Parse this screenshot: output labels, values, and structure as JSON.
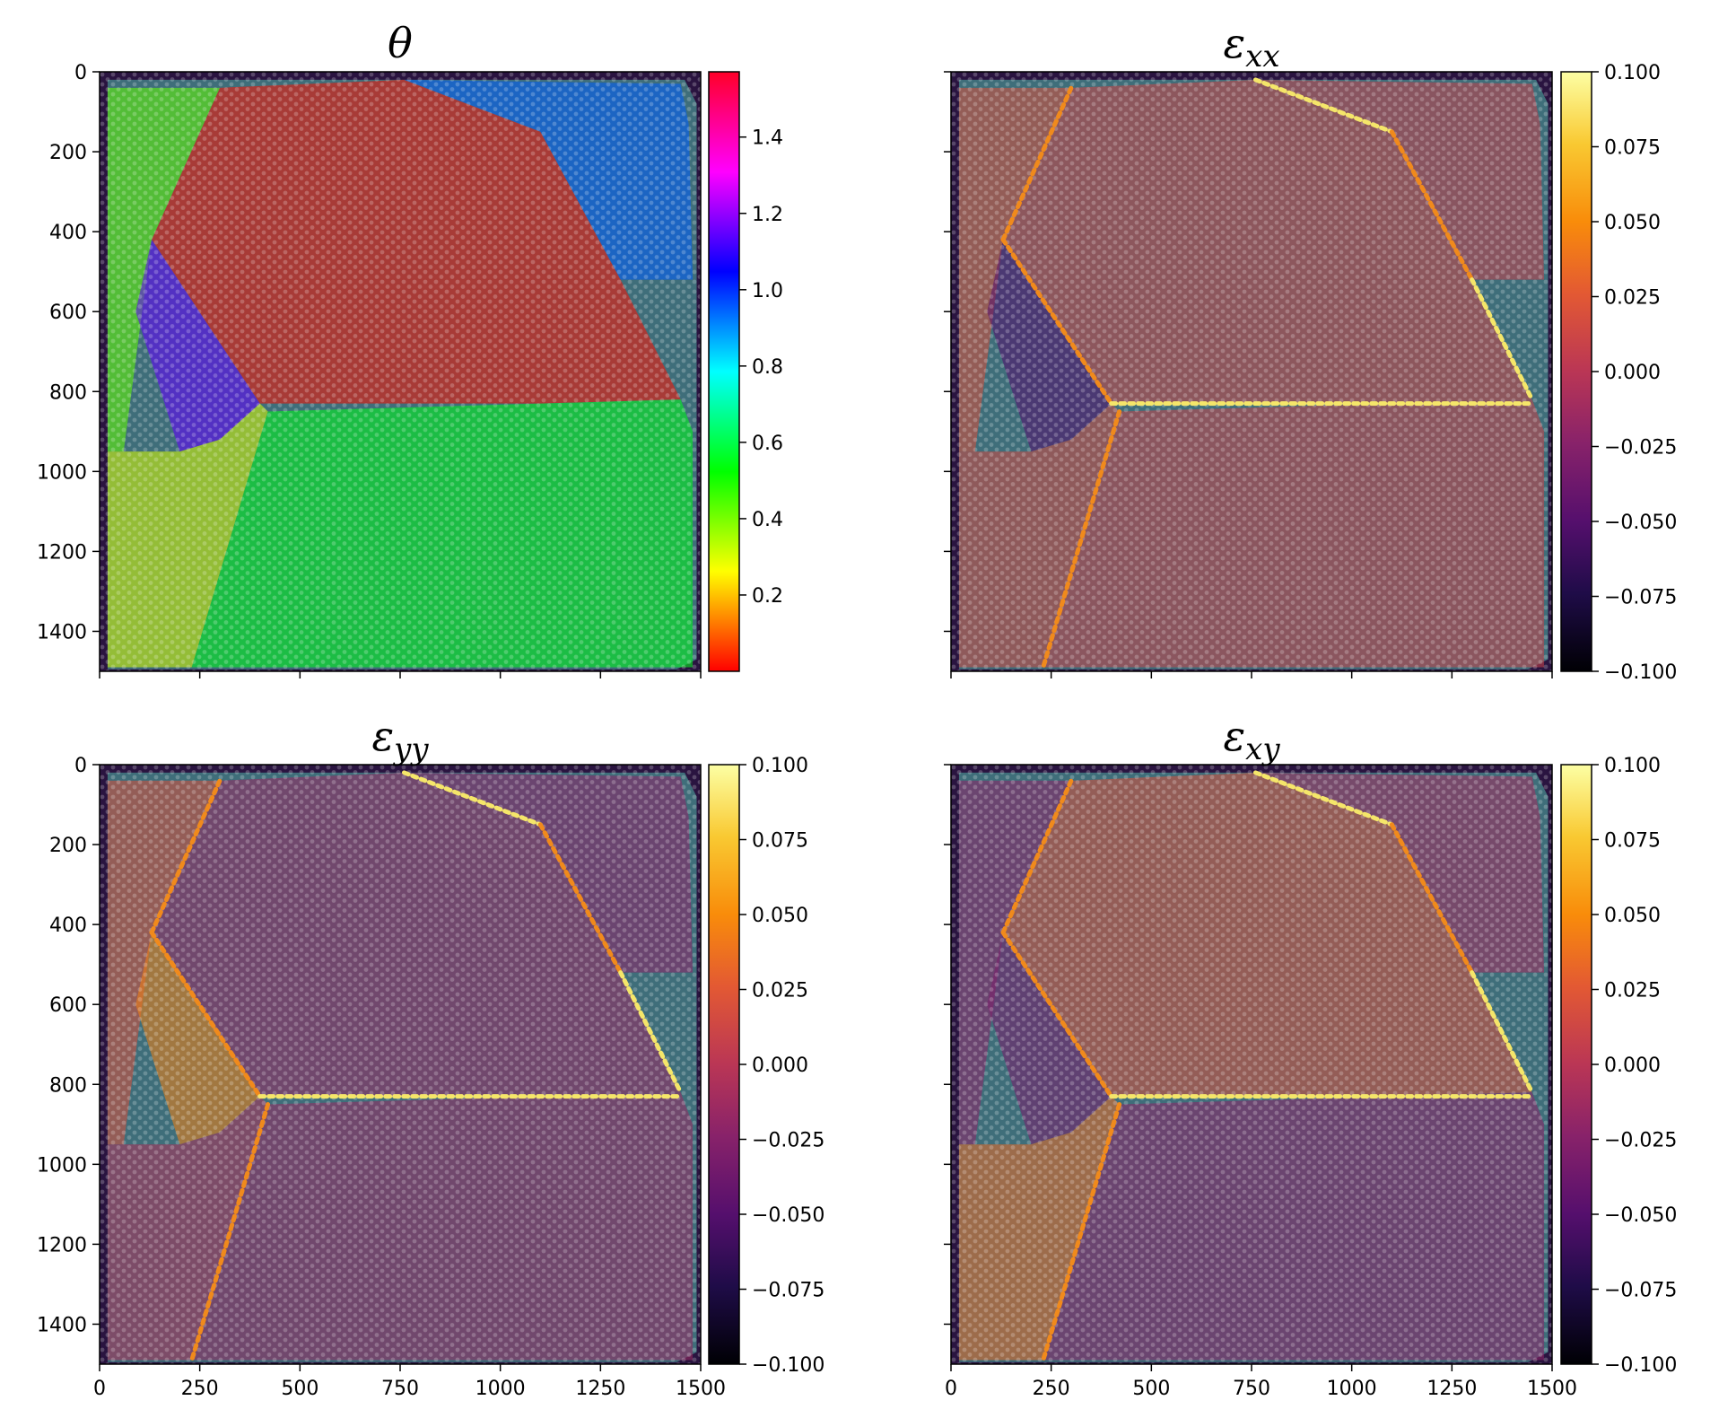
{
  "chart_data": [
    {
      "type": "heatmap",
      "title": "θ",
      "title_parts": {
        "base": "θ",
        "sub": ""
      },
      "colormap": "hsv",
      "colorbar": {
        "ticks": [
          0.2,
          0.4,
          0.6,
          0.8,
          1.0,
          1.2,
          1.4
        ],
        "tick_labels": [
          "0.2",
          "0.4",
          "0.6",
          "0.8",
          "1.0",
          "1.2",
          "1.4"
        ],
        "range": [
          0.0,
          1.571
        ]
      },
      "x_ticks": [
        0,
        250,
        500,
        750,
        1000,
        1250,
        1500
      ],
      "x_tick_labels": [],
      "y_ticks": [
        0,
        200,
        400,
        600,
        800,
        1000,
        1200,
        1400
      ],
      "y_tick_labels": [
        "0",
        "200",
        "400",
        "600",
        "800",
        "1000",
        "1200",
        "1400"
      ],
      "xlim": [
        0,
        1500
      ],
      "ylim": [
        1500,
        0
      ],
      "regions": [
        {
          "name": "upper-left grain",
          "value": 0.02
        },
        {
          "name": "upper-right grain",
          "value": 0.95
        },
        {
          "name": "left-edge strip",
          "value": 0.42
        },
        {
          "name": "small inclusion",
          "value": 1.15
        },
        {
          "name": "lower-left grain",
          "value": 0.3
        },
        {
          "name": "lower-right grain",
          "value": 0.55
        }
      ]
    },
    {
      "type": "heatmap",
      "title": "εxx",
      "title_parts": {
        "base": "ε",
        "sub": "xx"
      },
      "colormap": "inferno",
      "colorbar": {
        "ticks": [
          0.1,
          0.075,
          0.05,
          0.025,
          0.0,
          -0.025,
          -0.05,
          -0.075,
          -0.1
        ],
        "tick_labels": [
          "0.100",
          "0.075",
          "0.050",
          "0.025",
          "0.000",
          "−0.025",
          "−0.050",
          "−0.075",
          "−0.100"
        ],
        "range": [
          -0.1,
          0.1
        ]
      },
      "x_ticks": [
        0,
        250,
        500,
        750,
        1000,
        1250,
        1500
      ],
      "x_tick_labels": [],
      "y_ticks": [
        0,
        200,
        400,
        600,
        800,
        1000,
        1200,
        1400
      ],
      "y_tick_labels": [],
      "xlim": [
        0,
        1500
      ],
      "ylim": [
        1500,
        0
      ],
      "regions": [
        {
          "name": "upper-left grain",
          "value": 0.012
        },
        {
          "name": "upper-right grain",
          "value": 0.008
        },
        {
          "name": "left-edge strip",
          "value": 0.02
        },
        {
          "name": "small inclusion",
          "value": -0.05
        },
        {
          "name": "lower-left grain",
          "value": 0.015
        },
        {
          "name": "lower-right grain",
          "value": 0.01
        }
      ]
    },
    {
      "type": "heatmap",
      "title": "εyy",
      "title_parts": {
        "base": "ε",
        "sub": "yy"
      },
      "colormap": "inferno",
      "colorbar": {
        "ticks": [
          0.1,
          0.075,
          0.05,
          0.025,
          0.0,
          -0.025,
          -0.05,
          -0.075,
          -0.1
        ],
        "tick_labels": [
          "0.100",
          "0.075",
          "0.050",
          "0.025",
          "0.000",
          "−0.025",
          "−0.050",
          "−0.075",
          "−0.100"
        ],
        "range": [
          -0.1,
          0.1
        ]
      },
      "x_ticks": [
        0,
        250,
        500,
        750,
        1000,
        1250,
        1500
      ],
      "x_tick_labels": [
        "0",
        "250",
        "500",
        "750",
        "1000",
        "1250",
        "1500"
      ],
      "y_ticks": [
        0,
        200,
        400,
        600,
        800,
        1000,
        1200,
        1400
      ],
      "y_tick_labels": [
        "0",
        "200",
        "400",
        "600",
        "800",
        "1000",
        "1200",
        "1400"
      ],
      "xlim": [
        0,
        1500
      ],
      "ylim": [
        1500,
        0
      ],
      "regions": [
        {
          "name": "upper-left grain",
          "value": -0.015
        },
        {
          "name": "upper-right grain",
          "value": -0.02
        },
        {
          "name": "left-edge strip",
          "value": 0.02
        },
        {
          "name": "small inclusion",
          "value": 0.045
        },
        {
          "name": "lower-left grain",
          "value": -0.005
        },
        {
          "name": "lower-right grain",
          "value": -0.015
        }
      ]
    },
    {
      "type": "heatmap",
      "title": "εxy",
      "title_parts": {
        "base": "ε",
        "sub": "xy"
      },
      "colormap": "inferno",
      "colorbar": {
        "ticks": [
          0.1,
          0.075,
          0.05,
          0.025,
          0.0,
          -0.025,
          -0.05,
          -0.075,
          -0.1
        ],
        "tick_labels": [
          "0.100",
          "0.075",
          "0.050",
          "0.025",
          "0.000",
          "−0.025",
          "−0.050",
          "−0.075",
          "−0.100"
        ],
        "range": [
          -0.1,
          0.1
        ]
      },
      "x_ticks": [
        0,
        250,
        500,
        750,
        1000,
        1250,
        1500
      ],
      "x_tick_labels": [
        "0",
        "250",
        "500",
        "750",
        "1000",
        "1250",
        "1500"
      ],
      "y_ticks": [
        0,
        200,
        400,
        600,
        800,
        1000,
        1200,
        1400
      ],
      "y_tick_labels": [],
      "xlim": [
        0,
        1500
      ],
      "ylim": [
        1500,
        0
      ],
      "regions": [
        {
          "name": "upper-left grain",
          "value": 0.02
        },
        {
          "name": "upper-right grain",
          "value": -0.01
        },
        {
          "name": "left-edge strip",
          "value": -0.02
        },
        {
          "name": "small inclusion",
          "value": -0.03
        },
        {
          "name": "lower-left grain",
          "value": 0.035
        },
        {
          "name": "lower-right grain",
          "value": -0.02
        }
      ]
    }
  ]
}
